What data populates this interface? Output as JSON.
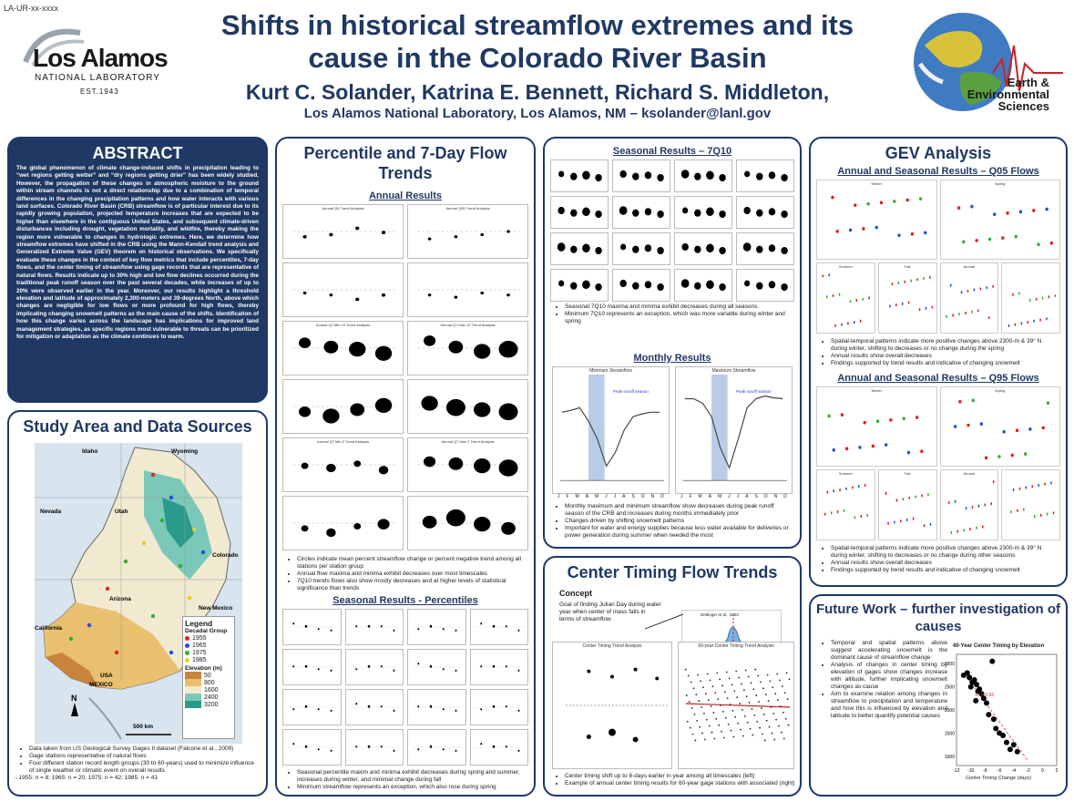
{
  "header": {
    "ur_number": "LA-UR-xx-xxxx",
    "title_line1": "Shifts in historical streamflow extremes and its",
    "title_line2": "cause in the Colorado River Basin",
    "authors": "Kurt C. Solander, Katrina E. Bennett, Richard S. Middleton,",
    "affiliation": "Los Alamos National Laboratory, Los Alamos, NM – ksolander@lanl.gov",
    "lanl_logo_name": "Los Alamos",
    "lanl_logo_sub": "NATIONAL LABORATORY",
    "lanl_logo_est": "EST.1943",
    "ees_logo_line1": "Earth &",
    "ees_logo_line2": "Environmental",
    "ees_logo_line3": "Sciences"
  },
  "abstract": {
    "title": "ABSTRACT",
    "text": "The global phenomenon of climate change-induced shifts in precipitation leading to “wet regions getting wetter” and “dry regions getting drier” has been widely studied. However, the propagation of these changes in atmospheric moisture to the ground within stream channels is not a direct relationship due to a combination of temporal differences in the changing precipitation patterns and how water interacts with various land surfaces. Colorado River Basin (CRB) streamflow is of particular interest due to its rapidly growing population, projected temperature increases that are expected to be higher than elsewhere in the contiguous United States, and subsequent climate-driven disturbances including drought, vegetation mortality, and wildfire, thereby making the region more vulnerable to changes in hydrologic extremes. Here, we determine how streamflow extremes have shifted in the CRB using the Mann-Kendall trend analysis and Generalized Extreme Value (GEV) theorem on historical observations. We specifically evaluate these changes in the context of key flow metrics that include percentiles, 7-day flows, and the center timing of streamflow using gage records that are representative of natural flows. Results indicate up to 30% high and low flow declines occurred during the traditional peak runoff season over the past several decades, while increases of up to 20% were observed earlier in the year. Moreover, our results highlight a threshold elevation and latitude of approximately 2,300-meters and 39-degrees North, above which changes are negligible for low flows or more profound for high flows, thereby implicating changing snowmelt patterns as the main cause of the shifts. Identification of how this change varies across the landscape has implications for improved land management strategies, as specific regions most vulnerable to threats can be prioritized for mitigation or adaptation as the climate continues to warm."
  },
  "study_area": {
    "title": "Study Area and Data Sources",
    "map_labels": {
      "idaho": "Idaho",
      "wyoming": "Wyoming",
      "nevada": "Nevada",
      "utah": "Utah",
      "colorado": "Colorado",
      "arizona": "Arizona",
      "new_mexico": "New Mexico",
      "california": "California",
      "usa": "USA",
      "mexico": "MEXICO",
      "north": "N",
      "scale": "500 km"
    },
    "legend": {
      "title": "Legend",
      "group_title": "Decadal Group",
      "groups": [
        {
          "label": "1955",
          "color": "#e02020"
        },
        {
          "label": "1965",
          "color": "#2050e0"
        },
        {
          "label": "1975",
          "color": "#30b030"
        },
        {
          "label": "1985",
          "color": "#e8d020"
        }
      ],
      "elev_title": "Elevation (m)",
      "elevations": [
        {
          "label": "50",
          "color": "#c8843c"
        },
        {
          "label": "800",
          "color": "#e8c070"
        },
        {
          "label": "1600",
          "color": "#f2ead0"
        },
        {
          "label": "2400",
          "color": "#7ac8b8"
        },
        {
          "label": "3200",
          "color": "#2a9a8a"
        }
      ]
    },
    "bullets": [
      "Data taken from US Geological Survey Gages II dataset (Falcone et al., 2009)",
      "Gage stations representative of natural flows",
      "Four different station record length groups (30 to 60-years) used to minimize influence of single weather or climatic event on overall results"
    ],
    "counts": "→1955: n = 8; 1965: n = 20; 1975: n = 42; 1985: n = 41"
  },
  "percentile": {
    "title": "Percentile and 7-Day Flow Trends",
    "annual_heading": "Annual Results",
    "plot_titles": [
      "Annual Q5 Trend Analysis",
      "Annual Q95 Trend Analysis",
      "Annual Q7 Min 10 Trend Analysis",
      "Annual Q7 Max 10 Trend Analysis",
      "Annual Q7 Min 2 Trend Analysis",
      "Annual Q7 Max 2 Trend Analysis"
    ],
    "bullets": [
      "Circles indicate mean percent streamflow change or percent negative trend among all stations per station group",
      "Annual flow maxima and minima exhibit decreases over most timescales",
      "7Q10 trends flows also show mostly decreases and at higher levels of statistical significance than trends"
    ],
    "seasonal_heading": "Seasonal Results - Percentiles",
    "seasonal_bullets": [
      "Seasonal percentile maxim and minima exhibit decreases during spring and summer, increases during winter, and minimal change during fall",
      "Minimum streamflow represents an exception, which also rose during spring"
    ]
  },
  "seasonal7q10": {
    "heading": "Seasonal Results – 7Q10",
    "bullets": [
      "Seasonal 7Q10 maxima and minima exhibit decreases during all seasons",
      "Minimum 7Q10 represents an exception, which was more variable during winter and spring"
    ],
    "monthly_heading": "Monthly Results",
    "min_title": "Minimum Streamflow",
    "max_title": "Maximum Streamflow",
    "peak_label": "Peak runoff season",
    "months": [
      "J",
      "F",
      "M",
      "A",
      "M",
      "J",
      "J",
      "A",
      "S",
      "O",
      "N",
      "D"
    ],
    "monthly_bullets": [
      "Monthly maximum and minimum streamflow show decreases during peak runoff season of the CRB and increases during months immediately prior",
      "Changes driven by shifting snowmelt patterns",
      "Important for water and energy supplies because less water available for deliveries or power generation during summer when needed the most"
    ]
  },
  "center_timing": {
    "title": "Center Timing Flow Trends",
    "concept_heading": "Concept",
    "concept_text": "Goal of finding Julian Day during water year when center of mass falls in terms of streamflow",
    "citation": "Dettinger et al., 2003",
    "plot1_title": "Center Timing Trend Analysis",
    "plot2_title": "60-year Center Timing Trend Analysis",
    "bullets": [
      "Center timing shift up to 6-days earlier in year among all timescales (left)",
      "Example of annual center timing results for 60-year gage stations with associated (right)"
    ]
  },
  "gev": {
    "title": "GEV Analysis",
    "q05_heading": "Annual and Seasonal Results – Q05 Flows",
    "q05_plots": [
      "Winter",
      "Spring",
      "Summer",
      "Fall",
      "Annual"
    ],
    "q05_bullets": [
      "Spatial-temporal patterns indicate more positive changes above 2300-m & 39° N during winter, shifting to decreases or no change during the spring",
      "Annual results show overall decreases",
      "Findings supported by trend results and indicative of changing snowmelt"
    ],
    "q95_heading": "Annual and Seasonal Results – Q95 Flows",
    "q95_bullets": [
      "Spatial-temporal patterns indicate more positive changes above 2300-m & 39° N during winter, shifting to decreases or no change during other seasons",
      "Annual results show overall decreases",
      "Findings supported by trend results and indicative of changing snowmelt"
    ]
  },
  "future": {
    "title": "Future Work – further investigation of causes",
    "bullets": [
      "Temporal and spatial patterns above suggest accelerating snowmelt is the dominant cause of streamflow change",
      "Analysis of changes in center timing by elevation of gages show changes increase with altitude, further implicating snowmelt changes as cause",
      "Aim to examine relation among changes in streamflow to precipitation and temperature and how this is influenced by elevation and latitude to better quantify potential causes"
    ],
    "chart_title": "40-Year Center Timing by Elevation",
    "xlabel": "Center Timing Change (days)",
    "r2_label": "R² = 0.63",
    "xticks": [
      "-12",
      "-10",
      "-8",
      "-6",
      "-4",
      "-2",
      "0",
      "2"
    ],
    "yticks": [
      "3000",
      "2500",
      "2000",
      "1500",
      "1000"
    ]
  },
  "chart_data": {
    "type": "scatter",
    "title": "40-Year Center Timing by Elevation",
    "xlabel": "Center Timing Change (days)",
    "ylabel": "",
    "xlim": [
      -12,
      2
    ],
    "ylim": [
      800,
      3200
    ],
    "points": [
      {
        "x": -11.0,
        "y": 2750
      },
      {
        "x": -10.5,
        "y": 2800
      },
      {
        "x": -10.2,
        "y": 2700
      },
      {
        "x": -9.8,
        "y": 2600
      },
      {
        "x": -9.5,
        "y": 2650
      },
      {
        "x": -9.2,
        "y": 2550
      },
      {
        "x": -10.0,
        "y": 2500
      },
      {
        "x": -9.0,
        "y": 2400
      },
      {
        "x": -8.8,
        "y": 2450
      },
      {
        "x": -8.5,
        "y": 2350
      },
      {
        "x": -9.3,
        "y": 2200
      },
      {
        "x": -8.2,
        "y": 2250
      },
      {
        "x": -7.8,
        "y": 2150
      },
      {
        "x": -7.5,
        "y": 1900
      },
      {
        "x": -6.8,
        "y": 1800
      },
      {
        "x": -6.5,
        "y": 1600
      },
      {
        "x": -6.0,
        "y": 1500
      },
      {
        "x": -5.5,
        "y": 1450
      },
      {
        "x": -5.0,
        "y": 1300
      },
      {
        "x": -4.5,
        "y": 1150
      },
      {
        "x": -4.0,
        "y": 1250
      },
      {
        "x": -3.5,
        "y": 1100
      },
      {
        "x": -7.0,
        "y": 3050
      }
    ],
    "trendline": {
      "x": [
        -11,
        -2
      ],
      "y": [
        2800,
        900
      ]
    }
  }
}
